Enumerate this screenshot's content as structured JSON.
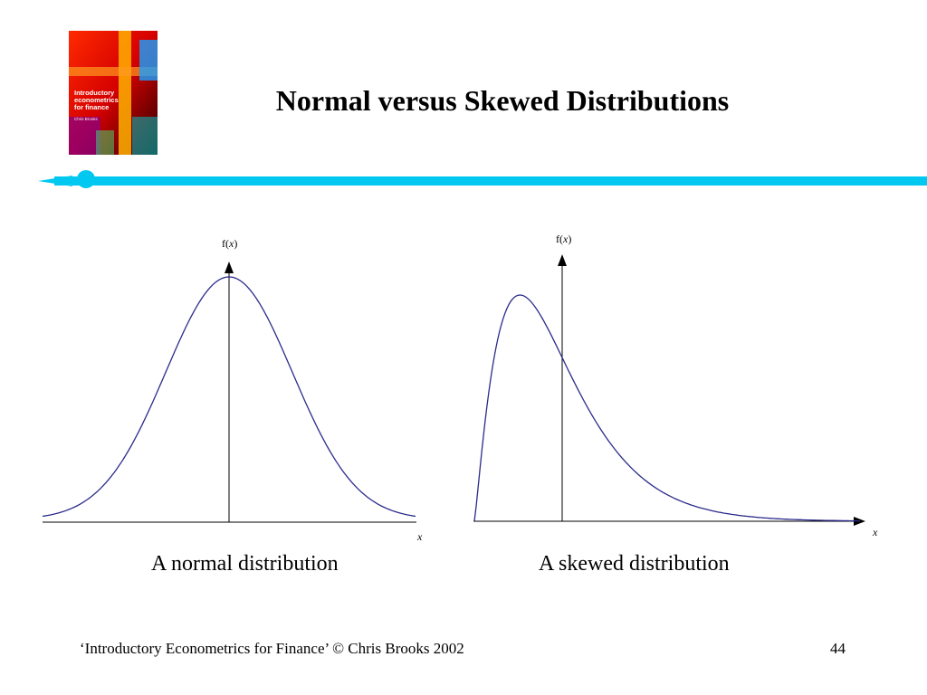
{
  "slide": {
    "title": "Normal versus Skewed Distributions",
    "accent_color": "#00C8F0"
  },
  "book_cover": {
    "title_lines": [
      "Introductory",
      "econometrics",
      "for finance"
    ],
    "author": "Chris Brooks"
  },
  "diagrams": {
    "normal": {
      "y_axis_label_f": "f(",
      "y_axis_label_x": "x",
      "y_axis_label_close": ")",
      "x_axis_label": "x",
      "caption": "A normal distribution",
      "curve_color": "#2B2B8C"
    },
    "skewed": {
      "y_axis_label_f": "f(",
      "y_axis_label_x": "x",
      "y_axis_label_close": ")",
      "x_axis_label": "x",
      "caption": "A skewed distribution",
      "curve_color": "#2B2B8C"
    }
  },
  "footer": {
    "citation": "‘Introductory Econometrics for Finance’ © Chris Brooks 2002",
    "page_number": "44"
  }
}
